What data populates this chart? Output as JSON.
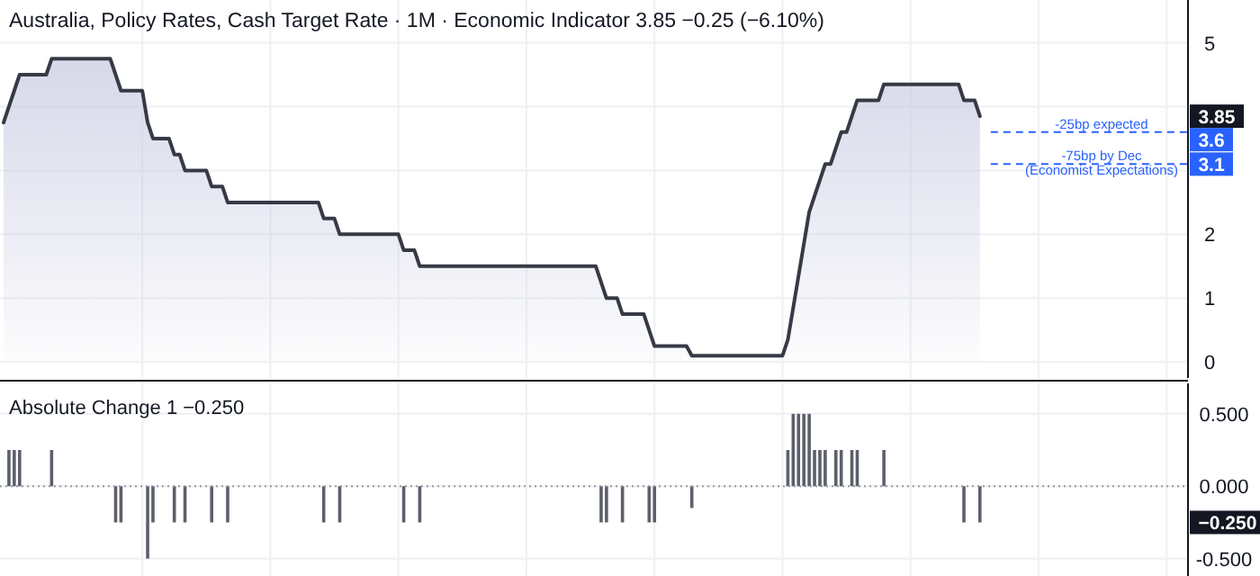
{
  "chart_data": [
    {
      "type": "area",
      "title": "Australia, Policy Rates, Cash Target Rate · 1M · Economic Indicator  3.85  −0.25 (−6.10%)",
      "categories": [
        null,
        null,
        null,
        null,
        null,
        null,
        null,
        null,
        null,
        null,
        null,
        null,
        null,
        null,
        null,
        null,
        null,
        null,
        null,
        null,
        null,
        null,
        null,
        null,
        null,
        null,
        null,
        null,
        null,
        null,
        null,
        null,
        null,
        null,
        null,
        null,
        null,
        null,
        null,
        null,
        null,
        null,
        null,
        null,
        null,
        null,
        null,
        null,
        null,
        null,
        null,
        null,
        null,
        null,
        null,
        null,
        null,
        null,
        null,
        null,
        null,
        null,
        null,
        null,
        null,
        null,
        null,
        null,
        null,
        null,
        null,
        null,
        null,
        null,
        null,
        null,
        null,
        null,
        null,
        null,
        null,
        null,
        null,
        null,
        null,
        null,
        null,
        null,
        null,
        null,
        null,
        null,
        null,
        null,
        null,
        null,
        null,
        null,
        null,
        null,
        null,
        null,
        null,
        null,
        null,
        null,
        null,
        null,
        null,
        null,
        null,
        null,
        null,
        null,
        null,
        null,
        null,
        null,
        null,
        null,
        null,
        null,
        null,
        null,
        null,
        null,
        null,
        null,
        null,
        null,
        null,
        null,
        null,
        null,
        null,
        null,
        null,
        null,
        null,
        null,
        null,
        null,
        null,
        null,
        null,
        null,
        null,
        null,
        null,
        null,
        null,
        null,
        null,
        null,
        null,
        null,
        null,
        null,
        null,
        null,
        null,
        null,
        null,
        null,
        null,
        null,
        null,
        null,
        null,
        null,
        null,
        null,
        null,
        null,
        null,
        null,
        null,
        null,
        null,
        null,
        null,
        null,
        null,
        null
      ],
      "series": [
        {
          "color": "#363a45",
          "values": [
            3.75,
            4.0,
            4.25,
            4.5,
            4.5,
            4.5,
            4.5,
            4.5,
            4.5,
            4.75,
            4.75,
            4.75,
            4.75,
            4.75,
            4.75,
            4.75,
            4.75,
            4.75,
            4.75,
            4.75,
            4.75,
            4.5,
            4.25,
            4.25,
            4.25,
            4.25,
            4.25,
            3.75,
            3.5,
            3.5,
            3.5,
            3.5,
            3.25,
            3.25,
            3.0,
            3.0,
            3.0,
            3.0,
            3.0,
            2.75,
            2.75,
            2.75,
            2.5,
            2.5,
            2.5,
            2.5,
            2.5,
            2.5,
            2.5,
            2.5,
            2.5,
            2.5,
            2.5,
            2.5,
            2.5,
            2.5,
            2.5,
            2.5,
            2.5,
            2.5,
            2.25,
            2.25,
            2.25,
            2.0,
            2.0,
            2.0,
            2.0,
            2.0,
            2.0,
            2.0,
            2.0,
            2.0,
            2.0,
            2.0,
            2.0,
            1.75,
            1.75,
            1.75,
            1.5,
            1.5,
            1.5,
            1.5,
            1.5,
            1.5,
            1.5,
            1.5,
            1.5,
            1.5,
            1.5,
            1.5,
            1.5,
            1.5,
            1.5,
            1.5,
            1.5,
            1.5,
            1.5,
            1.5,
            1.5,
            1.5,
            1.5,
            1.5,
            1.5,
            1.5,
            1.5,
            1.5,
            1.5,
            1.5,
            1.5,
            1.5,
            1.5,
            1.5,
            1.25,
            1.0,
            1.0,
            1.0,
            0.75,
            0.75,
            0.75,
            0.75,
            0.75,
            0.5,
            0.25,
            0.25,
            0.25,
            0.25,
            0.25,
            0.25,
            0.25,
            0.1,
            0.1,
            0.1,
            0.1,
            0.1,
            0.1,
            0.1,
            0.1,
            0.1,
            0.1,
            0.1,
            0.1,
            0.1,
            0.1,
            0.1,
            0.1,
            0.1,
            0.1,
            0.35,
            0.85,
            1.35,
            1.85,
            2.35,
            2.6,
            2.85,
            3.1,
            3.1,
            3.35,
            3.6,
            3.6,
            3.85,
            4.1,
            4.1,
            4.1,
            4.1,
            4.1,
            4.35,
            4.35,
            4.35,
            4.35,
            4.35,
            4.35,
            4.35,
            4.35,
            4.35,
            4.35,
            4.35,
            4.35,
            4.35,
            4.35,
            4.35,
            4.1,
            4.1,
            4.1,
            3.85
          ]
        }
      ],
      "ylim": [
        -0.25,
        5.67
      ],
      "yticks": [
        0,
        1,
        2,
        {
          "value": 3,
          "label": null
        },
        {
          "value": 4,
          "label": null
        },
        5
      ],
      "grid": true,
      "ref_lines": [
        {
          "axis": "y",
          "value": 3.6,
          "label": "-25bp expected",
          "color": "#2962ff",
          "line_style": "dashed"
        },
        {
          "axis": "y",
          "value": 3.1,
          "label": "-75bp by Dec\n(Economist Expectations)",
          "color": "#2962ff",
          "line_style": "dashed"
        }
      ],
      "annotations": [
        "3.85",
        "3.6",
        "3.1"
      ]
    },
    {
      "type": "bar",
      "title": "Absolute Change 1  −0.250",
      "categories": [
        null,
        null,
        null,
        null,
        null,
        null,
        null,
        null,
        null,
        null,
        null,
        null,
        null,
        null,
        null,
        null,
        null,
        null,
        null,
        null,
        null,
        null,
        null,
        null,
        null,
        null,
        null,
        null,
        null,
        null,
        null,
        null,
        null,
        null,
        null,
        null,
        null,
        null,
        null,
        null,
        null,
        null,
        null,
        null,
        null,
        null,
        null,
        null,
        null,
        null,
        null,
        null,
        null,
        null,
        null,
        null,
        null,
        null,
        null,
        null,
        null,
        null,
        null,
        null,
        null,
        null,
        null,
        null,
        null,
        null,
        null,
        null,
        null,
        null,
        null,
        null,
        null,
        null,
        null,
        null,
        null,
        null,
        null,
        null,
        null,
        null,
        null,
        null,
        null,
        null,
        null,
        null,
        null,
        null,
        null,
        null,
        null,
        null,
        null,
        null,
        null,
        null,
        null,
        null,
        null,
        null,
        null,
        null,
        null,
        null,
        null,
        null,
        null,
        null,
        null,
        null,
        null,
        null,
        null,
        null,
        null,
        null,
        null,
        null,
        null,
        null,
        null,
        null,
        null,
        null,
        null,
        null,
        null,
        null,
        null,
        null,
        null,
        null,
        null,
        null,
        null,
        null,
        null,
        null,
        null,
        null,
        null,
        null,
        null,
        null,
        null,
        null,
        null,
        null,
        null,
        null,
        null,
        null,
        null,
        null,
        null,
        null,
        null,
        null,
        null,
        null,
        null,
        null,
        null,
        null,
        null,
        null,
        null,
        null,
        null,
        null,
        null,
        null,
        null,
        null,
        null,
        null,
        null,
        null,
        null,
        null,
        null,
        null,
        null,
        null,
        null,
        null,
        null,
        null,
        null,
        null,
        null,
        null,
        null,
        null,
        null,
        null,
        null,
        null,
        null,
        null,
        null,
        null,
        null,
        null,
        null,
        null,
        null,
        null,
        null,
        null,
        null,
        null,
        null,
        null,
        null,
        null,
        null
      ],
      "series": [
        {
          "color": "#5d606b",
          "values": [
            0,
            0.25,
            0.25,
            0.25,
            0,
            0,
            0,
            0,
            0,
            0.25,
            0,
            0,
            0,
            0,
            0,
            0,
            0,
            0,
            0,
            0,
            0,
            -0.25,
            -0.25,
            0,
            0,
            0,
            0,
            -0.5,
            -0.25,
            0,
            0,
            0,
            -0.25,
            0,
            -0.25,
            0,
            0,
            0,
            0,
            -0.25,
            0,
            0,
            -0.25,
            0,
            0,
            0,
            0,
            0,
            0,
            0,
            0,
            0,
            0,
            0,
            0,
            0,
            0,
            0,
            0,
            0,
            -0.25,
            0,
            0,
            -0.25,
            0,
            0,
            0,
            0,
            0,
            0,
            0,
            0,
            0,
            0,
            0,
            -0.25,
            0,
            0,
            -0.25,
            0,
            0,
            0,
            0,
            0,
            0,
            0,
            0,
            0,
            0,
            0,
            0,
            0,
            0,
            0,
            0,
            0,
            0,
            0,
            0,
            0,
            0,
            0,
            0,
            0,
            0,
            0,
            0,
            0,
            0,
            0,
            0,
            0,
            -0.25,
            -0.25,
            0,
            0,
            -0.25,
            0,
            0,
            0,
            0,
            -0.25,
            -0.25,
            0,
            0,
            0,
            0,
            0,
            0,
            -0.15,
            0,
            0,
            0,
            0,
            0,
            0,
            0,
            0,
            0,
            0,
            0,
            0,
            0,
            0,
            0,
            0,
            0,
            0.25,
            0.5,
            0.5,
            0.5,
            0.5,
            0.25,
            0.25,
            0.25,
            0,
            0.25,
            0.25,
            0,
            0.25,
            0.25,
            0,
            0,
            0,
            0,
            0.25,
            0,
            0,
            0,
            0,
            0,
            0,
            0,
            0,
            0,
            0,
            0,
            0,
            0,
            0,
            -0.25,
            0,
            0,
            -0.25,
            null,
            null,
            null,
            null,
            null,
            null,
            null,
            null,
            null,
            null,
            null,
            null,
            null,
            null,
            null,
            null,
            null,
            null,
            null,
            null,
            null,
            null,
            null,
            null,
            null,
            null,
            null,
            null,
            null,
            null,
            null,
            null,
            null,
            null,
            null,
            null,
            null,
            null,
            null
          ]
        }
      ],
      "ylim": [
        -0.62,
        0.71
      ],
      "yticks": [
        {
          "value": 0.5,
          "label": "0.500"
        },
        {
          "value": 0,
          "label": "0.000"
        },
        {
          "value": -0.5,
          "label": "-0.500"
        }
      ],
      "grid": true,
      "ref_lines": [
        {
          "axis": "y",
          "value": 0,
          "color": "#9598a1",
          "line_style": "dotted"
        }
      ],
      "annotations": [
        "−0.250"
      ]
    }
  ]
}
